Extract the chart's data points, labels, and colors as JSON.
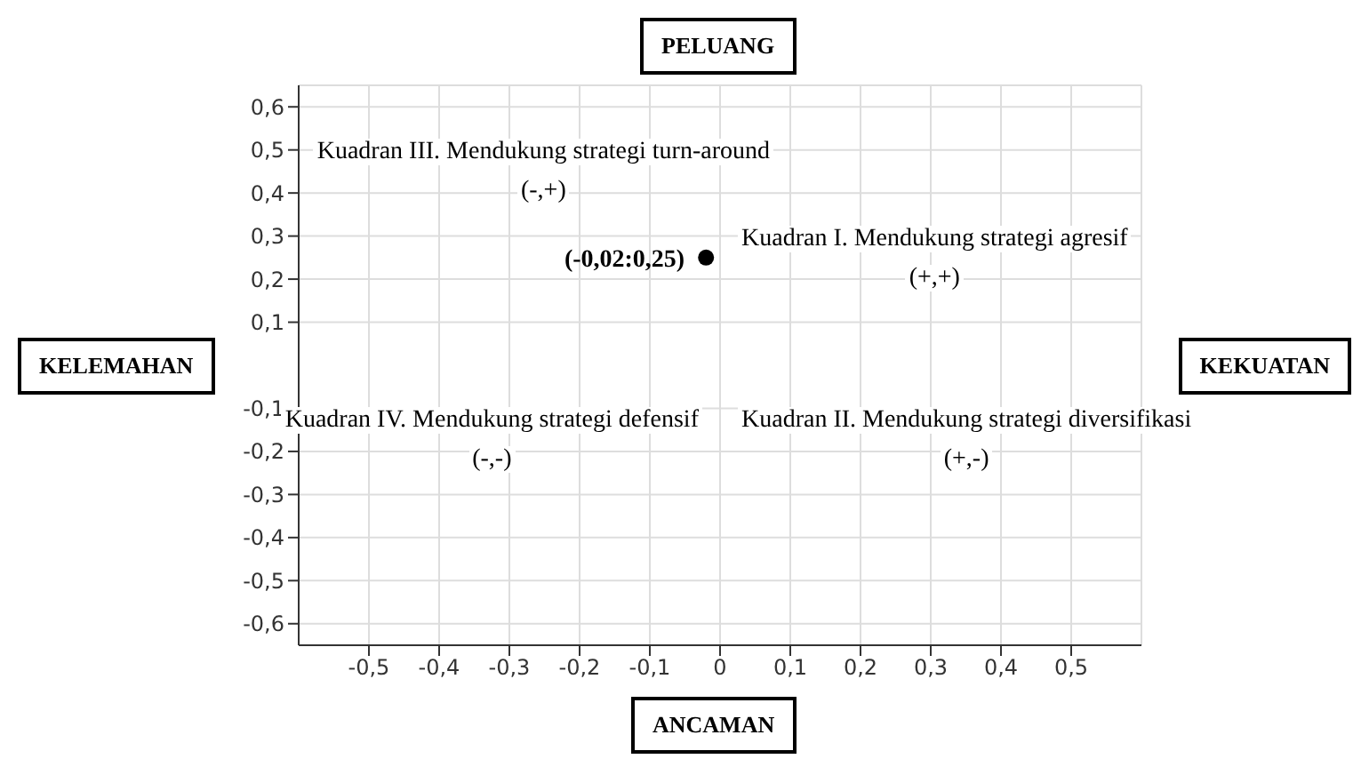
{
  "chart_data": {
    "type": "scatter",
    "x": [
      -0.02
    ],
    "values": [
      0.25
    ],
    "color": "#000000",
    "marker": "circle",
    "value_labels": [
      "(-0,02:0,25)"
    ],
    "xlim": [
      -0.6,
      0.6
    ],
    "ylim": [
      -0.65,
      0.65
    ],
    "xticks": [
      {
        "value": -0.5,
        "label": "-0,5"
      },
      {
        "value": -0.4,
        "label": "-0,4"
      },
      {
        "value": -0.3,
        "label": "-0,3"
      },
      {
        "value": -0.2,
        "label": "-0,2"
      },
      {
        "value": -0.1,
        "label": "-0,1"
      },
      0,
      {
        "value": 0.1,
        "label": "0,1"
      },
      {
        "value": 0.2,
        "label": "0,2"
      },
      {
        "value": 0.3,
        "label": "0,3"
      },
      {
        "value": 0.4,
        "label": "0,4"
      },
      {
        "value": 0.5,
        "label": "0,5"
      }
    ],
    "yticks": [
      {
        "value": -0.6,
        "label": "-0,6"
      },
      {
        "value": -0.5,
        "label": "-0,5"
      },
      {
        "value": -0.4,
        "label": "-0,4"
      },
      {
        "value": -0.3,
        "label": "-0,3"
      },
      {
        "value": -0.2,
        "label": "-0,2"
      },
      {
        "value": -0.1,
        "label": "-0,1"
      },
      {
        "value": 0.1,
        "label": "0,1"
      },
      {
        "value": 0.2,
        "label": "0,2"
      },
      {
        "value": 0.3,
        "label": "0,3"
      },
      {
        "value": 0.4,
        "label": "0,4"
      },
      {
        "value": 0.5,
        "label": "0,5"
      },
      {
        "value": 0.6,
        "label": "0,6"
      }
    ],
    "grid": true,
    "annotations": [
      "Kuadran III. Mendukung strategi turn-around",
      "(-,+)",
      "Kuadran I. Mendukung strategi agresif",
      "(+,+)",
      "Kuadran IV. Mendukung strategi defensif",
      "(-,-)",
      "Kuadran II. Mendukung strategi diversifikasi",
      "(+,-)",
      "KELEMAHAN",
      "KEKUATAN",
      "PELUANG",
      "ANCAMAN"
    ]
  }
}
